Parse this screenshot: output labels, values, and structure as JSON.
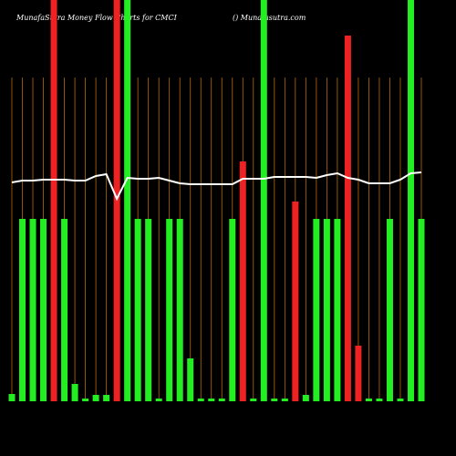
{
  "chart_data": {
    "type": "bar",
    "title": "MunafaSutra  Money Flow  Charts for CMCI",
    "subtitle": "() Munafasutra.com",
    "categories": [
      null,
      null,
      null,
      null,
      null,
      null,
      null,
      null,
      null,
      null,
      null,
      null,
      null,
      null,
      null,
      null,
      null,
      null,
      null,
      null,
      null,
      null,
      null,
      null,
      null,
      null,
      null,
      null,
      null,
      null,
      null,
      null,
      null,
      null,
      null,
      null,
      null,
      null,
      null,
      null
    ],
    "values": [
      8,
      200,
      200,
      200,
      440,
      200,
      19,
      3,
      7,
      7,
      440,
      440,
      200,
      200,
      3,
      200,
      200,
      47,
      3,
      3,
      3,
      200,
      263,
      3,
      440,
      3,
      3,
      219,
      7,
      200,
      200,
      200,
      401,
      61,
      3,
      3,
      200,
      3,
      440,
      200
    ],
    "bar_colors": [
      "#22ee22",
      "#22ee22",
      "#22ee22",
      "#22ee22",
      "#ee2222",
      "#22ee22",
      "#22ee22",
      "#22ee22",
      "#22ee22",
      "#22ee22",
      "#ee2222",
      "#22ee22",
      "#22ee22",
      "#22ee22",
      "#22ee22",
      "#22ee22",
      "#22ee22",
      "#22ee22",
      "#22ee22",
      "#22ee22",
      "#22ee22",
      "#22ee22",
      "#ee2222",
      "#22ee22",
      "#22ee22",
      "#22ee22",
      "#22ee22",
      "#ee2222",
      "#22ee22",
      "#22ee22",
      "#22ee22",
      "#22ee22",
      "#ee2222",
      "#ee2222",
      "#22ee22",
      "#22ee22",
      "#22ee22",
      "#22ee22",
      "#22ee22",
      "#22ee22"
    ],
    "line": {
      "color": "#ffffff",
      "values": [
        240,
        242,
        242,
        243,
        243,
        243,
        242,
        242,
        247,
        249,
        222,
        245,
        244,
        244,
        245,
        242,
        239,
        238,
        238,
        238,
        238,
        238,
        244,
        244,
        244,
        246,
        246,
        246,
        246,
        245,
        248,
        250,
        245,
        243,
        239,
        239,
        239,
        243,
        250,
        251
      ]
    },
    "gridline_color": "#b86b00",
    "ylim": [
      0,
      440
    ]
  }
}
